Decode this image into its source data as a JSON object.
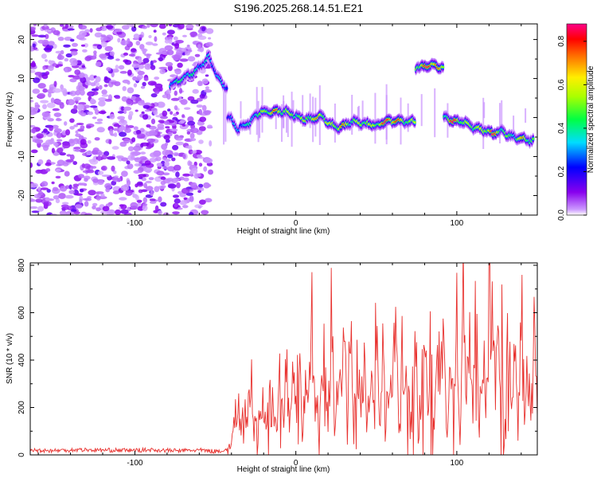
{
  "title": "S196.2025.268.14.51.E21",
  "chart_data": [
    {
      "type": "heatmap",
      "xlabel": "Height of straight line (km)",
      "ylabel": "Frequency (Hz)",
      "xlim": [
        -165,
        150
      ],
      "ylim": [
        -25,
        24
      ],
      "xticks": [
        -100,
        0,
        100
      ],
      "yticks": [
        -20,
        -10,
        0,
        10,
        20
      ],
      "colorbar": {
        "label": "Normalized spectral amplitude",
        "range": [
          0.0,
          0.88
        ],
        "ticks": [
          "0.0",
          "0.2",
          "0.4",
          "0.6",
          "0.8"
        ],
        "colormap": "rainbow (violet → blue → cyan → green → yellow → red → magenta)"
      },
      "noise_region_x": [
        -165,
        -53
      ],
      "ridge": [
        {
          "x": -78,
          "y": 8.5,
          "amp": 0.35
        },
        {
          "x": -70,
          "y": 10.0,
          "amp": 0.4
        },
        {
          "x": -62,
          "y": 12.0,
          "amp": 0.35
        },
        {
          "x": -54,
          "y": 15.5,
          "amp": 0.3
        },
        {
          "x": -48,
          "y": 10.0,
          "amp": 0.3
        },
        {
          "x": -44,
          "y": 8.0,
          "amp": 0.3
        },
        {
          "x": -41,
          "y": 0.0,
          "amp": 0.25
        },
        {
          "x": -36,
          "y": -3.0,
          "amp": 0.3
        },
        {
          "x": -28,
          "y": -1.0,
          "amp": 0.35
        },
        {
          "x": -22,
          "y": 1.5,
          "amp": 0.45
        },
        {
          "x": -14,
          "y": 1.5,
          "amp": 0.65
        },
        {
          "x": -6,
          "y": 1.5,
          "amp": 0.5
        },
        {
          "x": 2,
          "y": 0.0,
          "amp": 0.45
        },
        {
          "x": 9,
          "y": -0.5,
          "amp": 0.55
        },
        {
          "x": 16,
          "y": 0.5,
          "amp": 0.6
        },
        {
          "x": 22,
          "y": -2.0,
          "amp": 0.5
        },
        {
          "x": 28,
          "y": -2.5,
          "amp": 0.65
        },
        {
          "x": 35,
          "y": -1.0,
          "amp": 0.45
        },
        {
          "x": 42,
          "y": -1.5,
          "amp": 0.55
        },
        {
          "x": 50,
          "y": -2.0,
          "amp": 0.5
        },
        {
          "x": 56,
          "y": -1.0,
          "amp": 0.75
        },
        {
          "x": 62,
          "y": -1.0,
          "amp": 0.7
        },
        {
          "x": 70,
          "y": -1.0,
          "amp": 0.45
        },
        {
          "x": 78,
          "y": 13.0,
          "amp": 0.6
        },
        {
          "x": 84,
          "y": 13.5,
          "amp": 0.8
        },
        {
          "x": 90,
          "y": 13.0,
          "amp": 0.55
        },
        {
          "x": 93,
          "y": 0.0,
          "amp": 0.45
        },
        {
          "x": 98,
          "y": -1.0,
          "amp": 0.8
        },
        {
          "x": 104,
          "y": -1.0,
          "amp": 0.45
        },
        {
          "x": 110,
          "y": -2.5,
          "amp": 0.55
        },
        {
          "x": 116,
          "y": -3.0,
          "amp": 0.5
        },
        {
          "x": 122,
          "y": -4.0,
          "amp": 0.75
        },
        {
          "x": 128,
          "y": -3.5,
          "amp": 0.45
        },
        {
          "x": 135,
          "y": -5.0,
          "amp": 0.4
        },
        {
          "x": 141,
          "y": -5.5,
          "amp": 0.6
        },
        {
          "x": 148,
          "y": -6.0,
          "amp": 0.4
        }
      ]
    },
    {
      "type": "line",
      "xlabel": "Height of straight line (km)",
      "ylabel": "SNR (10 * v/v)",
      "xlim": [
        -165,
        150
      ],
      "ylim": [
        0,
        810
      ],
      "xticks": [
        -100,
        0,
        100
      ],
      "yticks": [
        0,
        200,
        400,
        600,
        800
      ],
      "color": "#e8312e",
      "series": [
        {
          "x": [
            -165,
            -150,
            -135,
            -120,
            -105,
            -90,
            -75,
            -60,
            -50,
            -44,
            -40,
            -38,
            -36,
            -34,
            -32,
            -30,
            -28,
            -26,
            -24,
            -22,
            -20,
            -18,
            -16,
            -14,
            -12,
            -10,
            -8,
            -6,
            -4,
            -2,
            0,
            2,
            4,
            6,
            8,
            10,
            12,
            14,
            16,
            18,
            20,
            22,
            24,
            26,
            28,
            30,
            32,
            34,
            36,
            38,
            40,
            42,
            44,
            46,
            48,
            50,
            52,
            54,
            56,
            58,
            60,
            62,
            64,
            66,
            68,
            70,
            72,
            74,
            76,
            78,
            80,
            82,
            84,
            86,
            88,
            90,
            92,
            94,
            96,
            98,
            100,
            102,
            104,
            106,
            108,
            110,
            112,
            114,
            116,
            118,
            120,
            122,
            124,
            126,
            128,
            130,
            132,
            134,
            136,
            138,
            140,
            142,
            144,
            146,
            148,
            150
          ],
          "y": [
            20,
            18,
            22,
            20,
            19,
            21,
            18,
            20,
            15,
            20,
            45,
            140,
            270,
            90,
            200,
            160,
            430,
            80,
            240,
            130,
            220,
            95,
            330,
            180,
            120,
            300,
            150,
            440,
            80,
            360,
            180,
            420,
            90,
            320,
            200,
            560,
            110,
            380,
            240,
            480,
            130,
            610,
            90,
            330,
            260,
            430,
            160,
            510,
            100,
            480,
            220,
            420,
            120,
            370,
            280,
            510,
            90,
            440,
            200,
            350,
            300,
            530,
            110,
            420,
            240,
            360,
            170,
            600,
            60,
            310,
            420,
            240,
            560,
            110,
            470,
            300,
            580,
            60,
            370,
            250,
            640,
            120,
            700,
            220,
            520,
            180,
            620,
            110,
            490,
            310,
            690,
            760,
            320,
            450,
            560,
            140,
            720,
            260,
            500,
            90,
            650,
            230,
            420,
            120,
            480,
            160
          ]
        }
      ]
    }
  ]
}
